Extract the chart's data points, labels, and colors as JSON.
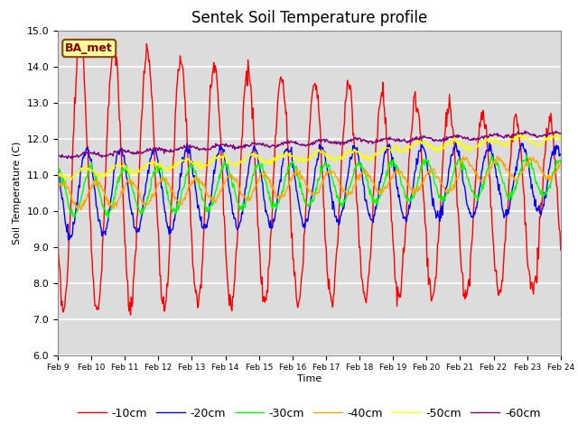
{
  "title": "Sentek Soil Temperature profile",
  "xlabel": "Time",
  "ylabel": "Soil Temperature (C)",
  "ylim": [
    6.0,
    15.0
  ],
  "yticks": [
    6.0,
    7.0,
    8.0,
    9.0,
    10.0,
    11.0,
    12.0,
    13.0,
    14.0,
    15.0
  ],
  "xtick_labels": [
    "Feb 9",
    "Feb 10",
    "Feb 11",
    "Feb 12",
    "Feb 13",
    "Feb 14",
    "Feb 15",
    "Feb 16",
    "Feb 17",
    "Feb 18",
    "Feb 19",
    "Feb 20",
    "Feb 21",
    "Feb 22",
    "Feb 23",
    "Feb 24"
  ],
  "legend_labels": [
    "-10cm",
    "-20cm",
    "-30cm",
    "-40cm",
    "-50cm",
    "-60cm"
  ],
  "line_colors": [
    "red",
    "blue",
    "lime",
    "orange",
    "yellow",
    "purple"
  ],
  "annotation_text": "BA_met",
  "annotation_color": "#8B0000",
  "annotation_bg": "#FFFF99",
  "plot_bg_color": "#DCDCDC",
  "title_fontsize": 12,
  "axis_fontsize": 8,
  "legend_fontsize": 9,
  "n_points": 720
}
